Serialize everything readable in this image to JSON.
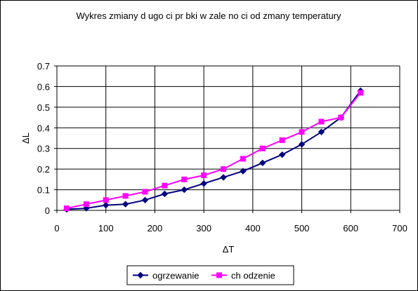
{
  "chart_data": {
    "type": "line",
    "title": "Wykres zmiany d ugo ci pr bki w zale no ci od zmany temperatury",
    "xlabel": "ΔT",
    "ylabel": "ΔL",
    "xlim": [
      0,
      700
    ],
    "ylim": [
      0,
      0.7
    ],
    "xticks": [
      0,
      100,
      200,
      300,
      400,
      500,
      600,
      700
    ],
    "yticks": [
      0,
      0.1,
      0.2,
      0.3,
      0.4,
      0.5,
      0.6,
      0.7
    ],
    "grid": true,
    "legend": "bottom",
    "plot_background": "#ffffff",
    "series": [
      {
        "name": "ogrzewanie",
        "color": "#000080",
        "marker": "diamond",
        "x": [
          20,
          60,
          100,
          140,
          180,
          220,
          260,
          300,
          340,
          380,
          420,
          460,
          500,
          540,
          580,
          620
        ],
        "y": [
          0.005,
          0.01,
          0.025,
          0.03,
          0.05,
          0.08,
          0.1,
          0.13,
          0.16,
          0.19,
          0.23,
          0.27,
          0.32,
          0.38,
          0.45,
          0.58
        ]
      },
      {
        "name": "ch odzenie",
        "color": "#ff00ff",
        "marker": "square",
        "x": [
          20,
          60,
          100,
          140,
          180,
          220,
          260,
          300,
          340,
          380,
          420,
          460,
          500,
          540,
          580,
          620
        ],
        "y": [
          0.01,
          0.03,
          0.05,
          0.07,
          0.09,
          0.12,
          0.15,
          0.17,
          0.2,
          0.25,
          0.3,
          0.34,
          0.38,
          0.43,
          0.45,
          0.57
        ]
      }
    ]
  }
}
